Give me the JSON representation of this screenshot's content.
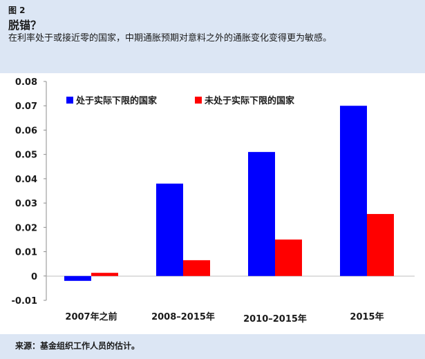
{
  "figure": {
    "label": "图 2",
    "title": "脱锚？",
    "subtitle": "在利率处于或接近零的国家，中期通胀预期对意料之外的通胀变化变得更为敏感。",
    "source": "来源：基金组织工作人员的估计。"
  },
  "colors": {
    "background": "#dce6f4",
    "series_1": "#0000ff",
    "series_2": "#ff0000"
  },
  "chart_data": {
    "type": "bar",
    "categories": [
      "2007年之前",
      "2008–2015年",
      "2010–2015年",
      "2015年"
    ],
    "series": [
      {
        "name": "处于实际下限的国家",
        "color": "#0000ff",
        "values": [
          -0.002,
          0.038,
          0.051,
          0.07
        ]
      },
      {
        "name": "未处于实际下限的国家",
        "color": "#ff0000",
        "values": [
          0.0013,
          0.0065,
          0.015,
          0.0255
        ]
      }
    ],
    "ylim": [
      -0.01,
      0.08
    ],
    "yticks": [
      "-0.01",
      "0",
      "0.01",
      "0.02",
      "0.03",
      "0.04",
      "0.05",
      "0.06",
      "0.07",
      "0.08"
    ],
    "xlabel": "",
    "ylabel": "",
    "grid": false,
    "legend_position": "top-left"
  }
}
